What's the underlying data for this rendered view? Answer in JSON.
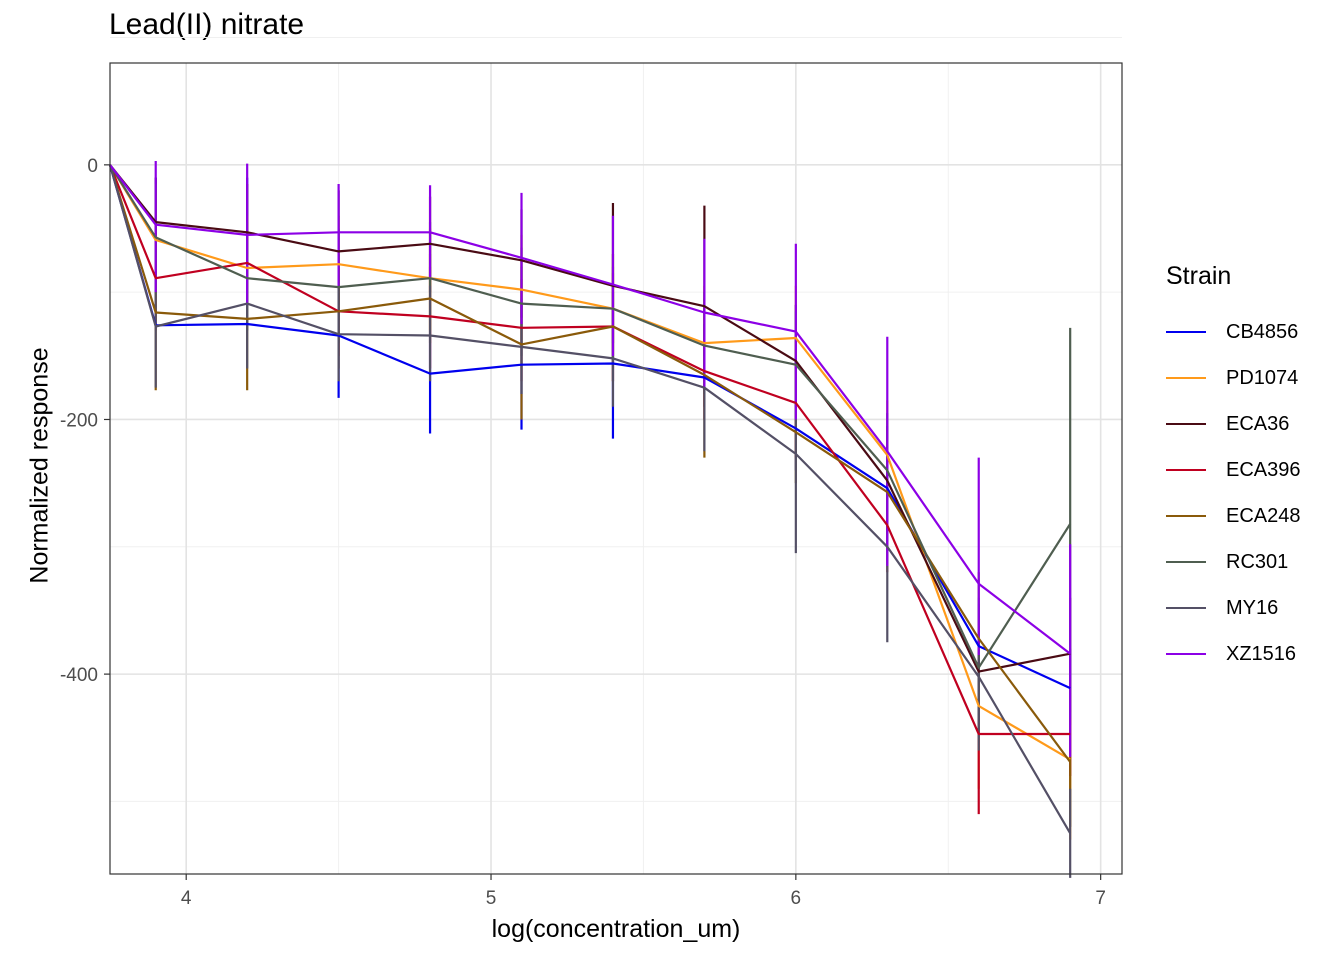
{
  "chart_data": {
    "type": "line",
    "title": "Lead(II) nitrate",
    "xlabel": "log(concentration_um)",
    "ylabel": "Normalized response",
    "xlim": [
      3.75,
      7.07
    ],
    "ylim": [
      -557,
      80
    ],
    "x_ticks": [
      4,
      5,
      6,
      7
    ],
    "y_ticks": [
      0,
      -200,
      -400
    ],
    "grid": true,
    "legend_title": "Strain",
    "legend_position": "right",
    "x": [
      3.75,
      3.9,
      4.2,
      4.5,
      4.8,
      5.1,
      5.4,
      5.7,
      6.0,
      6.3,
      6.6,
      6.9
    ],
    "series": [
      {
        "name": "CB4856",
        "color": "#0000ee",
        "values": [
          0,
          -126,
          -125,
          -134,
          -164,
          -157,
          -156,
          -167,
          -207,
          -254,
          -378,
          -411
        ],
        "error_low": [
          0,
          -10,
          -10,
          -183,
          -211,
          -208,
          -215,
          -190,
          -240,
          -290,
          -410,
          -440
        ],
        "error_high": [
          0,
          -100,
          -100,
          -100,
          -130,
          -110,
          -100,
          -140,
          -170,
          -220,
          -345,
          -380
        ]
      },
      {
        "name": "PD1074",
        "color": "#ff9a1a",
        "values": [
          0,
          -59,
          -81,
          -78,
          -89,
          -98,
          -113,
          -140,
          -136,
          -228,
          -425,
          -467
        ],
        "error_low": [
          0,
          -90,
          -110,
          -110,
          -130,
          -140,
          -150,
          -190,
          -180,
          -270,
          -490,
          -530
        ],
        "error_high": [
          0,
          -20,
          -40,
          -40,
          -50,
          -55,
          -70,
          -95,
          -95,
          -185,
          -360,
          -405
        ]
      },
      {
        "name": "ECA36",
        "color": "#4a0b14",
        "values": [
          0,
          -45,
          -53,
          -68,
          -62,
          -75,
          -95,
          -111,
          -154,
          -248,
          -398,
          -384
        ],
        "error_low": [
          0,
          -80,
          -95,
          -110,
          -100,
          -120,
          -140,
          -150,
          -200,
          -290,
          -440,
          -430
        ],
        "error_high": [
          0,
          -10,
          -15,
          -20,
          -25,
          -35,
          -30,
          -32,
          -110,
          -205,
          -355,
          -340
        ]
      },
      {
        "name": "ECA396",
        "color": "#c00020",
        "values": [
          0,
          -89,
          -77,
          -115,
          -119,
          -128,
          -127,
          -162,
          -187,
          -283,
          -447,
          -447
        ],
        "error_low": [
          0,
          -130,
          -110,
          -150,
          -160,
          -170,
          -170,
          -200,
          -230,
          -320,
          -510,
          -480
        ],
        "error_high": [
          0,
          -50,
          -45,
          -80,
          -80,
          -90,
          -85,
          -125,
          -145,
          -245,
          -385,
          -415
        ]
      },
      {
        "name": "ECA248",
        "color": "#8a5a0a",
        "values": [
          0,
          -116,
          -121,
          -115,
          -105,
          -141,
          -127,
          -165,
          -210,
          -257,
          -372,
          -469
        ],
        "error_low": [
          0,
          -177,
          -177,
          -160,
          -140,
          -200,
          -170,
          -230,
          -250,
          -300,
          -420,
          -520
        ],
        "error_high": [
          0,
          -60,
          -70,
          -70,
          -70,
          -80,
          -80,
          -105,
          -170,
          -215,
          -320,
          -420
        ]
      },
      {
        "name": "RC301",
        "color": "#4f5e50",
        "values": [
          0,
          -57,
          -89,
          -96,
          -89,
          -109,
          -113,
          -142,
          -157,
          -240,
          -395,
          -282
        ],
        "error_low": [
          0,
          -100,
          -130,
          -140,
          -130,
          -150,
          -155,
          -180,
          -200,
          -285,
          -450,
          -435
        ],
        "error_high": [
          0,
          -15,
          -45,
          -50,
          -45,
          -65,
          -70,
          -100,
          -115,
          -195,
          -340,
          -128
        ]
      },
      {
        "name": "MY16",
        "color": "#545066",
        "values": [
          0,
          -127,
          -109,
          -133,
          -134,
          -143,
          -152,
          -175,
          -227,
          -300,
          -402,
          -525
        ],
        "error_low": [
          0,
          -175,
          -160,
          -170,
          -170,
          -180,
          -190,
          -225,
          -305,
          -375,
          -460,
          -560
        ],
        "error_high": [
          0,
          -80,
          -60,
          -95,
          -95,
          -105,
          -115,
          -125,
          -150,
          -225,
          -345,
          -490
        ]
      },
      {
        "name": "XZ1516",
        "color": "#8c00e6",
        "values": [
          0,
          -47,
          -55,
          -53,
          -53,
          -73,
          -94,
          -116,
          -131,
          -225,
          -329,
          -384
        ],
        "error_low": [
          0,
          -100,
          -110,
          -95,
          -90,
          -125,
          -150,
          -175,
          -200,
          -315,
          -385,
          -465
        ],
        "error_high": [
          0,
          3,
          1,
          -15,
          -16,
          -22,
          -40,
          -58,
          -62,
          -135,
          -230,
          -298
        ]
      }
    ]
  }
}
